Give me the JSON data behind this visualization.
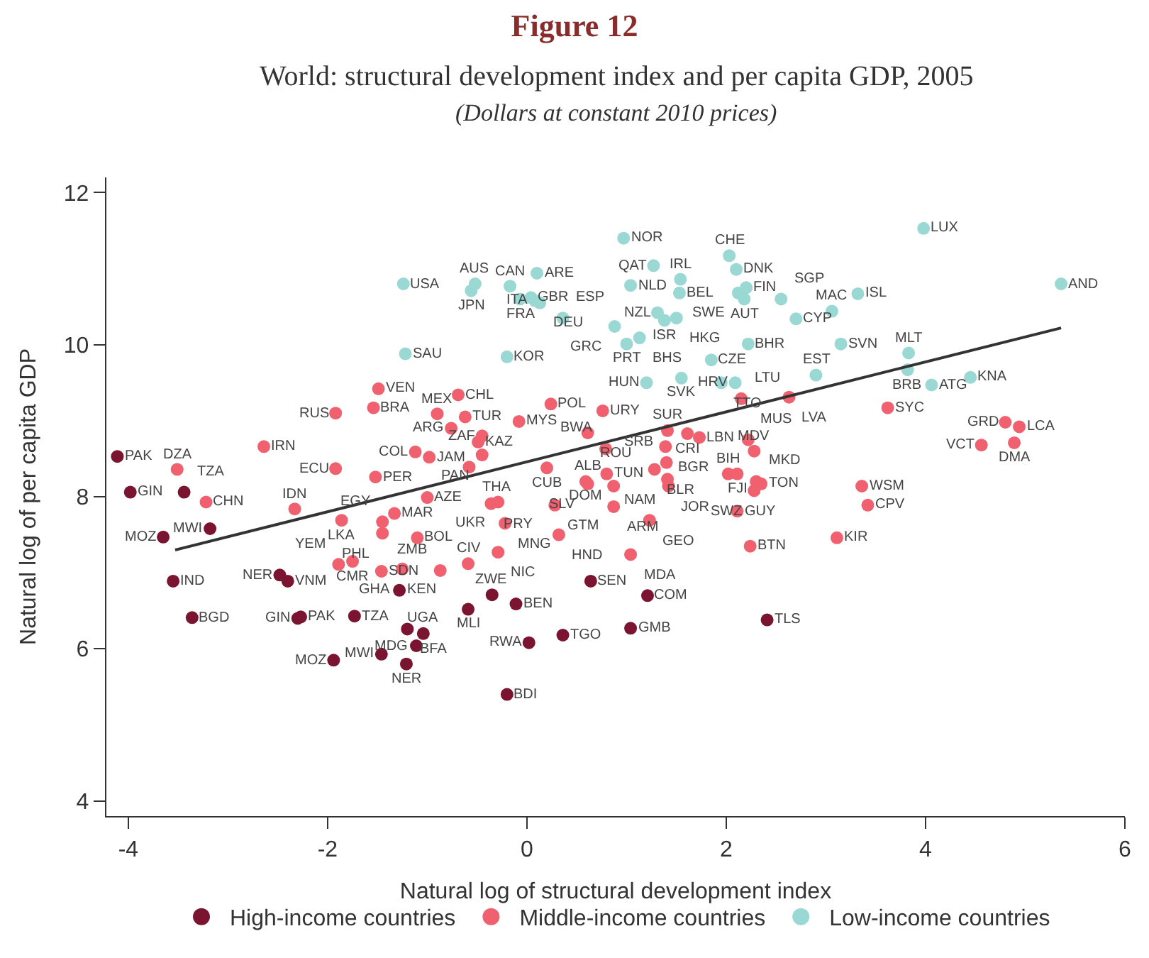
{
  "chart_data": {
    "type": "scatter",
    "title": "Figure 12",
    "subtitle": "World: structural development index and per capita GDP, 2005",
    "xlabel": "Natural log of structural development index",
    "ylabel": "Natural log of per capita GDP",
    "annotations": [
      "(Dollars at constant 2010 prices)"
    ],
    "xlim": [
      -4.22,
      6.0
    ],
    "xticks": [
      -4,
      -2,
      0,
      2,
      4,
      6
    ],
    "ylim": [
      3.8,
      12.2
    ],
    "yticks": [
      4,
      6,
      8,
      10,
      12
    ],
    "grid": false,
    "legend": "bottom",
    "marker": "circle",
    "series": [
      {
        "name": "High-income countries",
        "color": "#7a1430",
        "x": [
          -4.11,
          -3.98,
          -3.44,
          -3.18,
          -3.65,
          -3.55,
          -3.36,
          -2.48,
          -2.4,
          -2.27,
          -2.3,
          -1.73,
          -1.28,
          -1.2,
          -1.04,
          -1.11,
          -1.46,
          -1.94,
          -1.21,
          -0.35,
          -0.59,
          -0.11,
          0.64,
          1.21,
          1.04,
          0.36,
          0.02,
          -0.2,
          2.41
        ],
        "values": [
          8.53,
          8.06,
          8.06,
          7.58,
          7.47,
          6.89,
          6.41,
          6.97,
          6.89,
          6.42,
          6.4,
          6.43,
          6.77,
          6.26,
          6.2,
          6.04,
          5.93,
          5.85,
          5.8,
          6.71,
          6.52,
          6.59,
          6.89,
          6.7,
          6.27,
          6.18,
          6.08,
          5.4,
          6.38
        ],
        "value_labels": [
          "PAK",
          "GIN",
          "TZA",
          "MWI",
          "MOZ",
          "IND",
          "BGD",
          "NER",
          "VNM",
          "PAK",
          "GIN",
          "TZA",
          "KEN",
          "BFA",
          "UGA",
          "MDG",
          "MWI",
          "MOZ",
          "NER",
          "ZWE",
          "MLI",
          "BEN",
          "SEN",
          "COM",
          "GMB",
          "TGO",
          "RWA",
          "BDI",
          "TLS"
        ]
      },
      {
        "name": "Middle-income countries",
        "color": "#f0606e",
        "x": [
          -1.49,
          -1.92,
          -1.54,
          -0.9,
          -2.64,
          -1.92,
          -1.12,
          -0.98,
          -0.69,
          -0.62,
          -0.76,
          -0.49,
          -0.45,
          -0.08,
          -0.58,
          -0.45,
          0.24,
          0.76,
          0.61,
          0.2,
          0.59,
          0.8,
          0.79,
          1.39,
          1.41,
          1.61,
          1.73,
          1.28,
          1.4,
          1.41,
          0.87,
          0.61,
          2.3,
          2.02,
          2.11,
          2.22,
          2.28,
          2.15,
          2.63,
          1.42,
          -1.0,
          -0.29,
          -0.36,
          -0.22,
          0.28,
          0.32,
          0.87,
          1.23,
          2.11,
          2.35,
          2.28,
          2.24,
          1.04,
          -0.29,
          -0.59,
          -0.87,
          3.36,
          3.42,
          3.11,
          3.62,
          4.8,
          4.94,
          4.56,
          4.89,
          -3.51,
          -3.22,
          -2.33,
          -1.86,
          -1.52,
          -1.33,
          -1.45,
          -1.45,
          -1.1,
          -1.89,
          -1.75,
          -1.46,
          -1.25
        ],
        "values": [
          9.42,
          9.1,
          9.17,
          9.09,
          8.66,
          8.37,
          8.59,
          8.52,
          9.34,
          9.05,
          8.9,
          8.72,
          8.8,
          8.99,
          8.39,
          8.55,
          9.22,
          9.13,
          8.84,
          8.38,
          8.2,
          8.3,
          8.63,
          8.66,
          8.87,
          8.83,
          8.78,
          8.36,
          8.45,
          8.23,
          8.14,
          8.17,
          8.2,
          8.3,
          8.3,
          8.75,
          8.6,
          9.29,
          9.31,
          8.14,
          7.99,
          7.93,
          7.91,
          7.65,
          7.89,
          7.5,
          7.87,
          7.69,
          7.81,
          8.17,
          8.08,
          7.35,
          7.24,
          7.27,
          7.12,
          7.03,
          8.14,
          7.89,
          7.46,
          9.17,
          8.98,
          8.92,
          8.68,
          8.71,
          8.36,
          7.93,
          7.84,
          7.69,
          8.26,
          7.78,
          7.67,
          7.52,
          7.46,
          7.11,
          7.15,
          7.02,
          7.05
        ],
        "value_labels": [
          "VEN",
          "RUS",
          "BRA",
          "MEX",
          "IRN",
          "ECU",
          "COL",
          "JAM",
          "CHL",
          "TUR",
          "ARG",
          "KAZ",
          "ZAF",
          "MYS",
          "THA",
          "PAN",
          "POL",
          "URY",
          "ROU",
          "CUB",
          "DOM",
          "TUN",
          "BWA",
          "BGR",
          "SUR",
          "CRI",
          "LBN",
          "BLR",
          "SRB",
          "NAM",
          "ALB",
          "SLV",
          "MKD",
          "BIH",
          "FJI",
          "MUS",
          "MDV",
          "LTU",
          "LVA",
          "JOR",
          "AZE",
          "UKR",
          "PRY",
          "MNG",
          "GTM",
          "HND",
          "ARM",
          "GEO",
          "GUY",
          "TON",
          "SWZ",
          "BTN",
          "MDA",
          "NIC",
          "CIV",
          "ZMB",
          "WSM",
          "CPV",
          "KIR",
          "SYC",
          "GRD",
          "LCA",
          "VCT",
          "DMA",
          "DZA",
          "CHN",
          "IDN",
          "LKA",
          "PER",
          "MAR",
          "EGY",
          "PHL",
          "BOL",
          "YEM",
          "CMR",
          "SDN",
          "GHA"
        ]
      },
      {
        "name": "Low-income countries",
        "color": "#99d8d3",
        "x": [
          -1.24,
          -1.22,
          -0.52,
          -0.56,
          -0.17,
          0.1,
          -0.07,
          0.04,
          0.13,
          0.08,
          0.36,
          -0.2,
          1.04,
          0.97,
          1.27,
          1.54,
          1.53,
          2.03,
          2.1,
          2.12,
          2.18,
          2.2,
          1.31,
          1.38,
          1.5,
          0.88,
          1.13,
          1.0,
          1.2,
          1.55,
          1.85,
          2.09,
          1.95,
          2.22,
          3.98,
          3.32,
          3.06,
          2.7,
          2.55,
          3.15,
          2.9,
          3.83,
          3.82,
          4.06,
          4.45,
          5.36
        ],
        "values": [
          10.8,
          9.88,
          10.8,
          10.71,
          10.77,
          10.94,
          10.6,
          10.62,
          10.55,
          10.58,
          10.35,
          9.84,
          10.78,
          11.4,
          11.04,
          10.86,
          10.68,
          11.17,
          10.99,
          10.68,
          10.6,
          10.75,
          10.42,
          10.32,
          10.35,
          10.24,
          10.09,
          10.01,
          9.5,
          9.56,
          9.8,
          9.5,
          9.5,
          10.01,
          11.53,
          10.67,
          10.44,
          10.34,
          10.6,
          10.01,
          9.6,
          9.89,
          9.67,
          9.47,
          9.57,
          10.8
        ],
        "value_labels": [
          "USA",
          "SAU",
          "AUS",
          "JPN",
          "CAN",
          "ARE",
          "FRA",
          "GBR",
          "DEU",
          "ITA",
          "ESP",
          "KOR",
          "NLD",
          "NOR",
          "QAT",
          "IRL",
          "BEL",
          "CHE",
          "DNK",
          "SWE",
          "AUT",
          "FIN",
          "NZL",
          "ISR",
          "HKG",
          "GRC",
          "BHS",
          "PRT",
          "HUN",
          "SVK",
          "CZE",
          "HRV",
          "TTO",
          "BHR",
          "LUX",
          "ISL",
          "MAC",
          "CYP",
          "SGP",
          "SVN",
          "EST",
          "MLT",
          "BRB",
          "ATG",
          "KNA",
          "AND"
        ]
      },
      {
        "type": "line",
        "color": "#333333",
        "x": [
          -3.53,
          5.36
        ],
        "values": [
          7.3,
          10.22
        ],
        "marker": "none"
      }
    ]
  }
}
